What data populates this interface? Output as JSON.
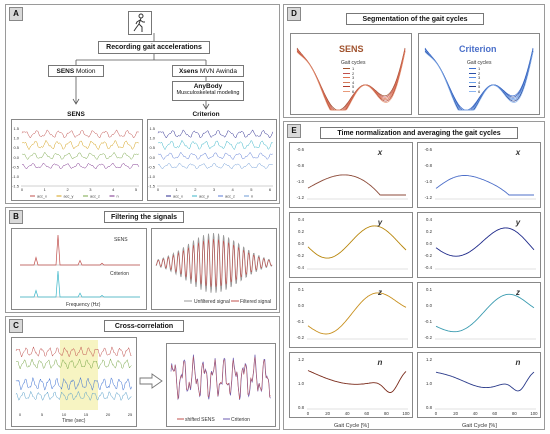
{
  "panels": {
    "A": {
      "tag": "A",
      "recording_title": "Recording gait accelerations",
      "sens_motion_bold": "SENS",
      "sens_motion_rest": " Motion",
      "xsens_bold": "Xsens",
      "xsens_rest": " MVN Awinda",
      "anybody_title": "AnyBody",
      "anybody_sub": "Musculoskeletal modeling",
      "sens_plot_title": "SENS",
      "criterion_plot_title": "Criterion",
      "yticks": [
        "1.5",
        "1.0",
        "0.5",
        "0.0",
        "-0.5",
        "-1.0",
        "-1.5"
      ],
      "sens_xticks": [
        "0",
        "1",
        "2",
        "3",
        "4",
        "5"
      ],
      "crit_xticks": [
        "0",
        "1",
        "2",
        "3",
        "4",
        "5",
        "6"
      ],
      "legend": [
        "acc_x",
        "acc_y",
        "acc_z",
        "n"
      ],
      "colors": {
        "x": "#c0504d",
        "y": "#d4a017",
        "z": "#7aa74a",
        "n": "#7a2e8a",
        "cx": "#5b7bd5",
        "cy": "#3bb6c9",
        "cz": "#6e9bd6",
        "cn": "#2a2a8f"
      }
    },
    "B": {
      "tag": "B",
      "title": "Filtering the signals",
      "legend_sens": "SENS",
      "legend_criterion": "Criterion",
      "xlabel": "Frequency (Hz)",
      "legend_unfiltered": "Unfiltered signal",
      "legend_filtered": "Filtered signal"
    },
    "C": {
      "tag": "C",
      "title": "Cross-correlation",
      "xlabel": "Time (sec)",
      "xticks": [
        "0",
        "5",
        "10",
        "15",
        "20",
        "25"
      ],
      "legend_shifted": "shifted SENS",
      "legend_criterion": "Criterion"
    },
    "D": {
      "tag": "D",
      "title": "Segmentation of the gait cycles",
      "sens_label": "SENS",
      "criterion_label": "Criterion",
      "legend_title": "Gait cycles",
      "legend_items": [
        "1",
        "2",
        "3",
        "4",
        "5",
        "6"
      ]
    },
    "E": {
      "tag": "E",
      "title": "Time normalization and averaging the gait cycles",
      "xlabel": "Gait Cycle [%]",
      "xticks": [
        "0",
        "20",
        "40",
        "60",
        "80",
        "100"
      ],
      "rows": [
        {
          "label": "x",
          "yticks": [
            "-0.6",
            "-0.8",
            "-1.0",
            "-1.2"
          ],
          "sens_color": "#8c4a38",
          "crit_color": "#4d6fc9"
        },
        {
          "label": "y",
          "yticks": [
            "0.4",
            "0.2",
            "0.0",
            "-0.2",
            "-0.4"
          ],
          "sens_color": "#b8860b",
          "crit_color": "#1f2a8a"
        },
        {
          "label": "z",
          "yticks": [
            "0.1",
            "0.0",
            "-0.1",
            "-0.2"
          ],
          "sens_color": "#c8901e",
          "crit_color": "#3a9bb0"
        },
        {
          "label": "n",
          "yticks": [
            "1.2",
            "1.0",
            "0.8"
          ],
          "sens_color": "#7a2a1a",
          "crit_color": "#2a3a8a"
        }
      ]
    }
  }
}
